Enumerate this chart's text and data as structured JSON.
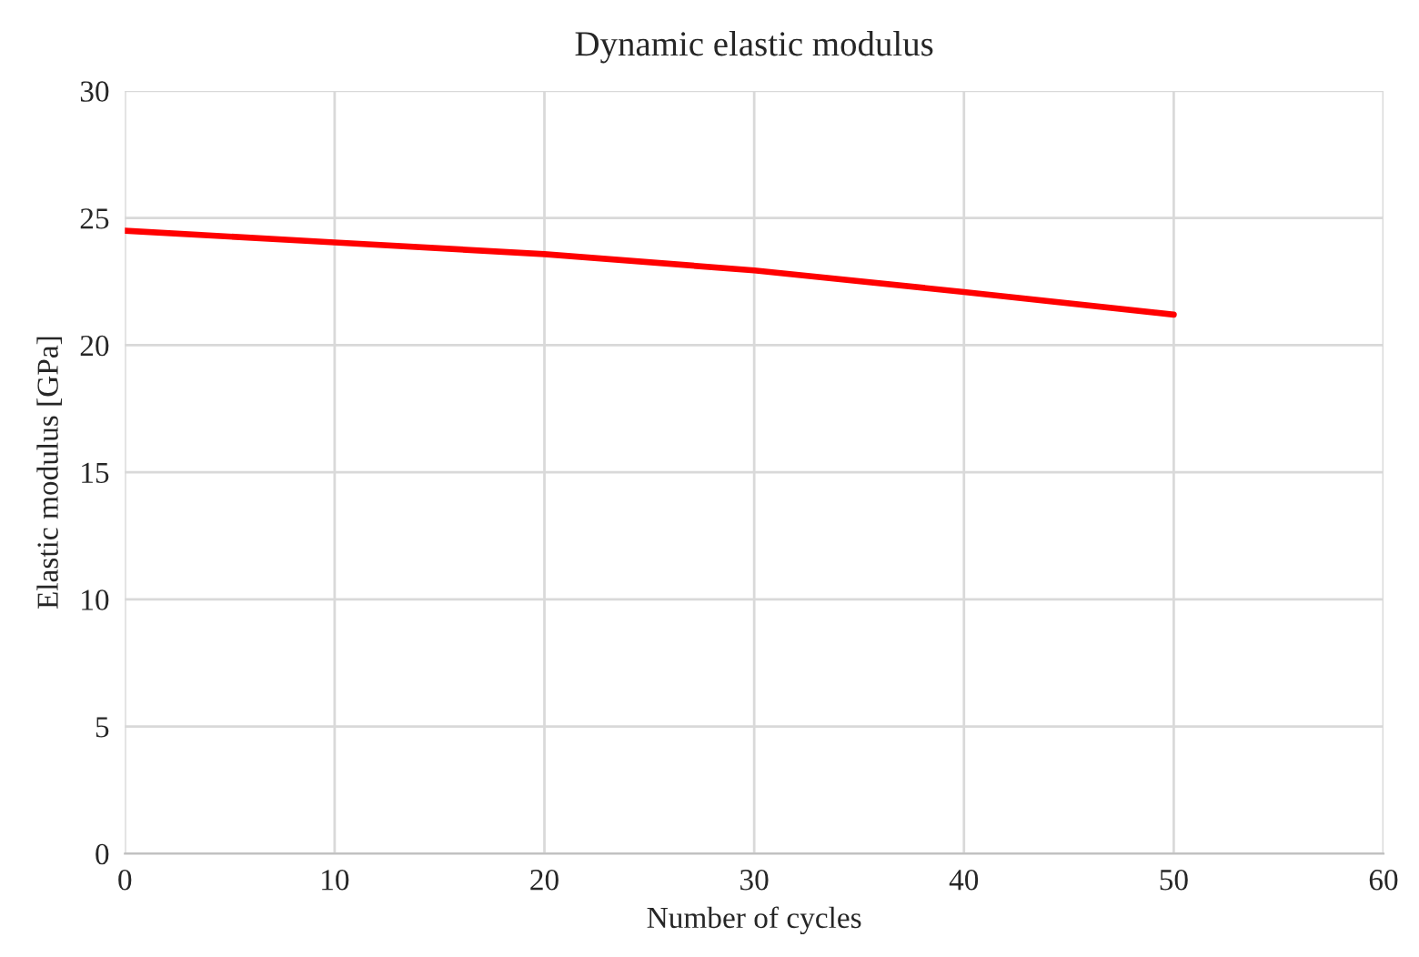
{
  "chart_data": {
    "type": "line",
    "title": "Dynamic elastic modulus",
    "xlabel": "Number of cycles",
    "ylabel": "Elastic modulus [GPa]",
    "x": [
      0,
      10,
      20,
      30,
      40,
      50
    ],
    "series": [
      {
        "color": "#ff0000",
        "values": [
          24.5,
          24.04,
          23.58,
          22.94,
          22.09,
          21.2
        ]
      }
    ],
    "xlim": [
      0,
      60
    ],
    "xticks": [
      0,
      10,
      20,
      30,
      40,
      50,
      60
    ],
    "ylim": [
      0,
      30
    ],
    "yticks": [
      0,
      5,
      10,
      15,
      20,
      25,
      30
    ],
    "grid": true,
    "marker": "none",
    "line_style": "solid"
  }
}
